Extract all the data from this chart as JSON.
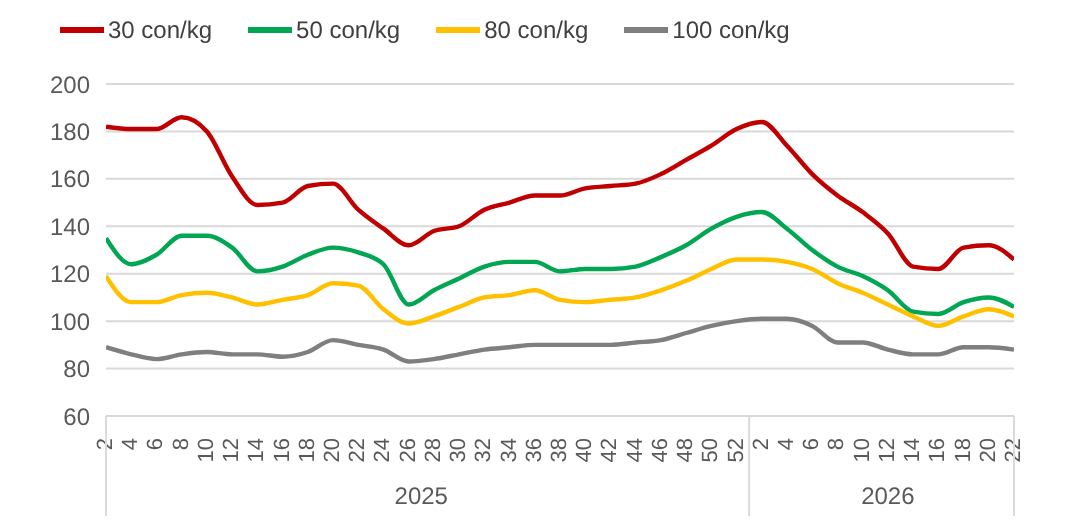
{
  "chart_data": {
    "type": "line",
    "categories": [
      "2",
      "4",
      "6",
      "8",
      "10",
      "12",
      "14",
      "16",
      "18",
      "20",
      "22",
      "24",
      "26",
      "28",
      "30",
      "32",
      "34",
      "36",
      "38",
      "40",
      "42",
      "44",
      "46",
      "48",
      "50",
      "52",
      "2",
      "4",
      "6",
      "8",
      "10",
      "12",
      "14",
      "16",
      "18",
      "20",
      "22"
    ],
    "annotations": [
      "2025",
      "2026"
    ],
    "series": [
      {
        "name": "30 con/kg",
        "color": "#c00000",
        "values": [
          182,
          181,
          181,
          186,
          180,
          161,
          149,
          150,
          157,
          158,
          147,
          139,
          132,
          138,
          140,
          147,
          150,
          153,
          153,
          156,
          157,
          158,
          162,
          168,
          174,
          181,
          184,
          174,
          162,
          153,
          146,
          137,
          123,
          122,
          131,
          132,
          126
        ]
      },
      {
        "name": "50 con/kg",
        "color": "#00a651",
        "values": [
          135,
          124,
          128,
          136,
          136,
          131,
          121,
          123,
          128,
          131,
          129,
          124,
          107,
          113,
          118,
          123,
          125,
          125,
          121,
          122,
          122,
          123,
          127,
          132,
          139,
          144,
          146,
          139,
          130,
          123,
          119,
          113,
          104,
          103,
          108,
          110,
          106
        ]
      },
      {
        "name": "80 con/kg",
        "color": "#ffc000",
        "values": [
          119,
          108,
          108,
          111,
          112,
          110,
          107,
          109,
          111,
          116,
          115,
          105,
          99,
          102,
          106,
          110,
          111,
          113,
          109,
          108,
          109,
          110,
          113,
          117,
          122,
          126,
          126,
          125,
          122,
          116,
          112,
          107,
          102,
          98,
          102,
          105,
          102
        ]
      },
      {
        "name": "100 con/kg",
        "color": "#7f7f7f",
        "values": [
          89,
          86,
          84,
          86,
          87,
          86,
          86,
          85,
          87,
          92,
          90,
          88,
          83,
          84,
          86,
          88,
          89,
          90,
          90,
          90,
          90,
          91,
          92,
          95,
          98,
          100,
          101,
          101,
          98,
          91,
          91,
          88,
          86,
          86,
          89,
          89,
          88
        ]
      }
    ],
    "ylim": [
      60,
      200
    ],
    "yticks": [
      60,
      80,
      100,
      120,
      140,
      160,
      180,
      200
    ],
    "grid": "y",
    "legend": "top",
    "marker": "none",
    "line_style": "solid"
  }
}
